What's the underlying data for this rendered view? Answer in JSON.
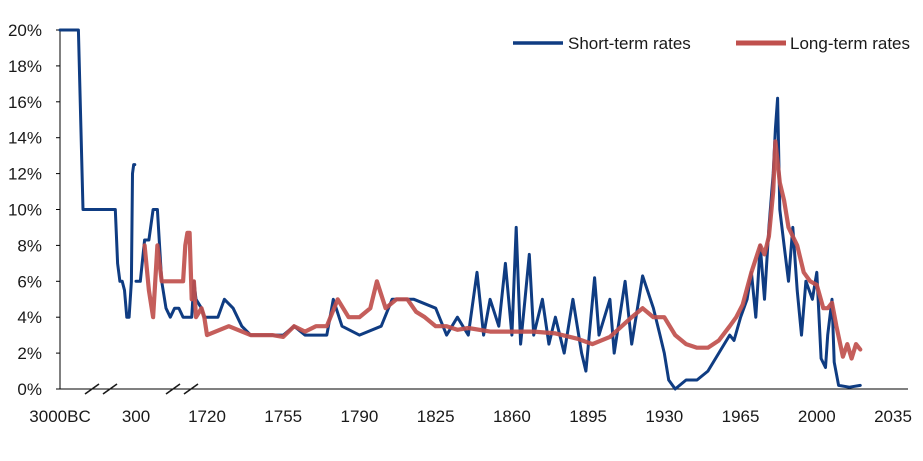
{
  "chart_data": {
    "type": "line",
    "title": "",
    "xlabel": "",
    "ylabel": "",
    "x_tick_labels": [
      "3000BC",
      "300",
      "1720",
      "1755",
      "1790",
      "1825",
      "1860",
      "1895",
      "1930",
      "1965",
      "2000",
      "2035"
    ],
    "y_tick_labels": [
      "0%",
      "2%",
      "4%",
      "6%",
      "8%",
      "10%",
      "12%",
      "14%",
      "16%",
      "18%",
      "20%"
    ],
    "ylim": [
      0,
      20
    ],
    "y_unit": "%",
    "grid": false,
    "legend_position": "top-right",
    "axis_break_after": "3000BC",
    "axis_break_after_2": "300",
    "series": [
      {
        "name": "Short-term rates",
        "color": "#0f3c82",
        "points": [
          [
            "3000BC",
            20.0
          ],
          [
            "-2600BC",
            20.0
          ],
          [
            "-2200BC",
            20.0
          ],
          [
            "-2000BC",
            10.0
          ],
          [
            "-1500BC",
            10.0
          ],
          [
            "-1000BC",
            10.0
          ],
          [
            "-600BC",
            10.0
          ],
          [
            "-500BC",
            7.0
          ],
          [
            "-400BC",
            6.0
          ],
          [
            "-300BC",
            6.0
          ],
          [
            "-200BC",
            5.5
          ],
          [
            "-100BC",
            4.0
          ],
          [
            "0",
            4.0
          ],
          [
            "100",
            6.0
          ],
          [
            "150",
            12.0
          ],
          [
            "200",
            12.5
          ],
          [
            "250",
            12.5
          ],
          [
            "300",
            6.0
          ],
          [
            "400",
            6.0
          ],
          [
            "500",
            8.3
          ],
          [
            "600",
            8.3
          ],
          [
            "700",
            10.0
          ],
          [
            "800",
            10.0
          ],
          [
            "900",
            6.0
          ],
          [
            "1000",
            4.5
          ],
          [
            "1100",
            4.0
          ],
          [
            "1200",
            4.5
          ],
          [
            "1300",
            4.5
          ],
          [
            "1400",
            4.0
          ],
          [
            "1500",
            4.0
          ],
          [
            "1550",
            4.0
          ],
          [
            "1600",
            4.0
          ],
          [
            "1650",
            6.0
          ],
          [
            "1700",
            5.0
          ],
          [
            "1710",
            4.5
          ],
          [
            "1715",
            4.0
          ],
          [
            "1720",
            4.0
          ],
          [
            "1725",
            4.0
          ],
          [
            "1728",
            5.0
          ],
          [
            "1732",
            4.5
          ],
          [
            "1736",
            3.5
          ],
          [
            "1740",
            3.0
          ],
          [
            "1745",
            3.0
          ],
          [
            "1750",
            3.0
          ],
          [
            "1755",
            3.0
          ],
          [
            "1760",
            3.5
          ],
          [
            "1765",
            3.0
          ],
          [
            "1770",
            3.0
          ],
          [
            "1775",
            3.0
          ],
          [
            "1778",
            5.0
          ],
          [
            "1782",
            3.5
          ],
          [
            "1790",
            3.0
          ],
          [
            "1800",
            3.5
          ],
          [
            "1805",
            5.0
          ],
          [
            "1815",
            5.0
          ],
          [
            "1825",
            4.5
          ],
          [
            "1830",
            3.0
          ],
          [
            "1835",
            4.0
          ],
          [
            "1840",
            3.0
          ],
          [
            "1844",
            6.5
          ],
          [
            "1847",
            3.0
          ],
          [
            "1850",
            5.0
          ],
          [
            "1854",
            3.5
          ],
          [
            "1857",
            7.0
          ],
          [
            "1860",
            3.0
          ],
          [
            "1862",
            9.0
          ],
          [
            "1864",
            2.5
          ],
          [
            "1866",
            5.0
          ],
          [
            "1868",
            7.5
          ],
          [
            "1870",
            3.0
          ],
          [
            "1874",
            5.0
          ],
          [
            "1877",
            2.5
          ],
          [
            "1880",
            4.0
          ],
          [
            "1884",
            2.0
          ],
          [
            "1888",
            5.0
          ],
          [
            "1892",
            2.0
          ],
          [
            "1894",
            1.0
          ],
          [
            "1898",
            6.2
          ],
          [
            "1900",
            3.0
          ],
          [
            "1905",
            5.0
          ],
          [
            "1907",
            2.0
          ],
          [
            "1912",
            6.0
          ],
          [
            "1915",
            2.5
          ],
          [
            "1920",
            6.3
          ],
          [
            "1925",
            4.5
          ],
          [
            "1928",
            3.0
          ],
          [
            "1930",
            2.0
          ],
          [
            "1932",
            0.5
          ],
          [
            "1935",
            0.0
          ],
          [
            "1940",
            0.5
          ],
          [
            "1945",
            0.5
          ],
          [
            "1950",
            1.0
          ],
          [
            "1955",
            2.0
          ],
          [
            "1960",
            3.0
          ],
          [
            "1962",
            2.7
          ],
          [
            "1965",
            4.0
          ],
          [
            "1968",
            5.0
          ],
          [
            "1970",
            6.5
          ],
          [
            "1972",
            4.0
          ],
          [
            "1974",
            8.0
          ],
          [
            "1976",
            5.0
          ],
          [
            "1978",
            9.0
          ],
          [
            "1980",
            12.0
          ],
          [
            "1981",
            14.5
          ],
          [
            "1982",
            16.2
          ],
          [
            "1983",
            10.0
          ],
          [
            "1985",
            8.0
          ],
          [
            "1987",
            6.0
          ],
          [
            "1989",
            9.0
          ],
          [
            "1991",
            5.5
          ],
          [
            "1993",
            3.0
          ],
          [
            "1995",
            6.0
          ],
          [
            "1998",
            5.0
          ],
          [
            "2000",
            6.5
          ],
          [
            "2002",
            1.7
          ],
          [
            "2004",
            1.2
          ],
          [
            "2005",
            3.0
          ],
          [
            "2007",
            5.0
          ],
          [
            "2008",
            1.5
          ],
          [
            "2010",
            0.2
          ],
          [
            "2015",
            0.1
          ],
          [
            "2020",
            0.2
          ]
        ]
      },
      {
        "name": "Long-term rates",
        "color": "#c0504d",
        "points": [
          [
            "500",
            8.0
          ],
          [
            "600",
            5.5
          ],
          [
            "700",
            4.0
          ],
          [
            "800",
            8.0
          ],
          [
            "900",
            6.0
          ],
          [
            "1000",
            6.0
          ],
          [
            "1100",
            6.0
          ],
          [
            "1200",
            6.0
          ],
          [
            "1300",
            6.0
          ],
          [
            "1400",
            6.0
          ],
          [
            "1450",
            8.0
          ],
          [
            "1500",
            8.7
          ],
          [
            "1550",
            8.7
          ],
          [
            "1600",
            5.0
          ],
          [
            "1650",
            6.0
          ],
          [
            "1700",
            4.0
          ],
          [
            "1710",
            4.5
          ],
          [
            "1715",
            4.0
          ],
          [
            "1720",
            3.0
          ],
          [
            "1730",
            3.5
          ],
          [
            "1740",
            3.0
          ],
          [
            "1750",
            3.0
          ],
          [
            "1755",
            2.9
          ],
          [
            "1760",
            3.5
          ],
          [
            "1765",
            3.2
          ],
          [
            "1770",
            3.5
          ],
          [
            "1775",
            3.5
          ],
          [
            "1780",
            5.0
          ],
          [
            "1785",
            4.0
          ],
          [
            "1790",
            4.0
          ],
          [
            "1795",
            4.5
          ],
          [
            "1798",
            6.0
          ],
          [
            "1802",
            4.5
          ],
          [
            "1807",
            5.0
          ],
          [
            "1812",
            5.0
          ],
          [
            "1816",
            4.3
          ],
          [
            "1820",
            4.0
          ],
          [
            "1825",
            3.5
          ],
          [
            "1830",
            3.5
          ],
          [
            "1835",
            3.3
          ],
          [
            "1840",
            3.4
          ],
          [
            "1850",
            3.2
          ],
          [
            "1860",
            3.2
          ],
          [
            "1870",
            3.2
          ],
          [
            "1880",
            3.1
          ],
          [
            "1890",
            2.8
          ],
          [
            "1897",
            2.5
          ],
          [
            "1905",
            2.9
          ],
          [
            "1915",
            4.0
          ],
          [
            "1920",
            4.5
          ],
          [
            "1925",
            4.0
          ],
          [
            "1930",
            4.0
          ],
          [
            "1935",
            3.0
          ],
          [
            "1940",
            2.5
          ],
          [
            "1945",
            2.3
          ],
          [
            "1950",
            2.3
          ],
          [
            "1955",
            2.7
          ],
          [
            "1960",
            3.5
          ],
          [
            "1963",
            4.0
          ],
          [
            "1966",
            4.7
          ],
          [
            "1970",
            6.5
          ],
          [
            "1974",
            8.0
          ],
          [
            "1976",
            7.5
          ],
          [
            "1978",
            8.5
          ],
          [
            "1980",
            11.0
          ],
          [
            "1981",
            13.8
          ],
          [
            "1983",
            11.5
          ],
          [
            "1985",
            10.5
          ],
          [
            "1987",
            9.0
          ],
          [
            "1989",
            8.5
          ],
          [
            "1991",
            8.0
          ],
          [
            "1994",
            6.5
          ],
          [
            "1997",
            6.0
          ],
          [
            "2000",
            5.8
          ],
          [
            "2003",
            4.5
          ],
          [
            "2005",
            4.5
          ],
          [
            "2007",
            4.8
          ],
          [
            "2009",
            3.5
          ],
          [
            "2012",
            1.8
          ],
          [
            "2014",
            2.5
          ],
          [
            "2016",
            1.7
          ],
          [
            "2018",
            2.5
          ],
          [
            "2020",
            2.2
          ]
        ]
      }
    ]
  }
}
